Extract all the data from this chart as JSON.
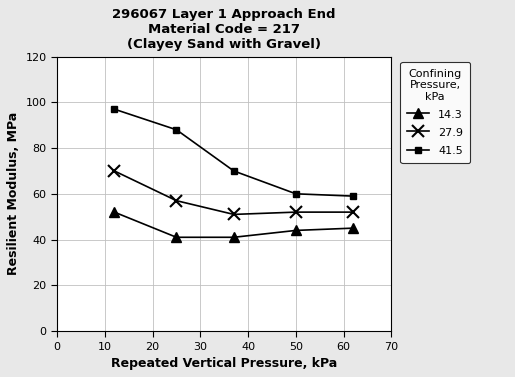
{
  "title_line1": "296067 Layer 1 Approach End",
  "title_line2": "Material Code = 217",
  "title_line3": "(Clayey Sand with Gravel)",
  "xlabel": "Repeated Vertical Pressure, kPa",
  "ylabel": "Resilient Modulus, MPa",
  "legend_title": "Confining\nPressure,\nkPa",
  "xlim": [
    0,
    70
  ],
  "ylim": [
    0,
    120
  ],
  "xticks": [
    0,
    10,
    20,
    30,
    40,
    50,
    60,
    70
  ],
  "yticks": [
    0,
    20,
    40,
    60,
    80,
    100,
    120
  ],
  "series": [
    {
      "label": "14.3",
      "x": [
        12,
        25,
        37,
        50,
        62
      ],
      "y": [
        52,
        41,
        41,
        44,
        45
      ],
      "color": "#000000",
      "marker": "^",
      "markersize": 7,
      "markerfacecolor": "#000000",
      "linewidth": 1.2
    },
    {
      "label": "27.9",
      "x": [
        12,
        25,
        37,
        50,
        62
      ],
      "y": [
        70,
        57,
        51,
        52,
        52
      ],
      "color": "#000000",
      "marker": "x",
      "markersize": 8,
      "markerfacecolor": "#000000",
      "linewidth": 1.2
    },
    {
      "label": "41.5",
      "x": [
        12,
        25,
        37,
        50,
        62
      ],
      "y": [
        97,
        88,
        70,
        60,
        59
      ],
      "color": "#000000",
      "marker": "s",
      "markersize": 5,
      "markerfacecolor": "#000000",
      "linewidth": 1.2
    }
  ],
  "background_color": "#ffffff",
  "figure_facecolor": "#e8e8e8",
  "grid_color": "#c0c0c0"
}
